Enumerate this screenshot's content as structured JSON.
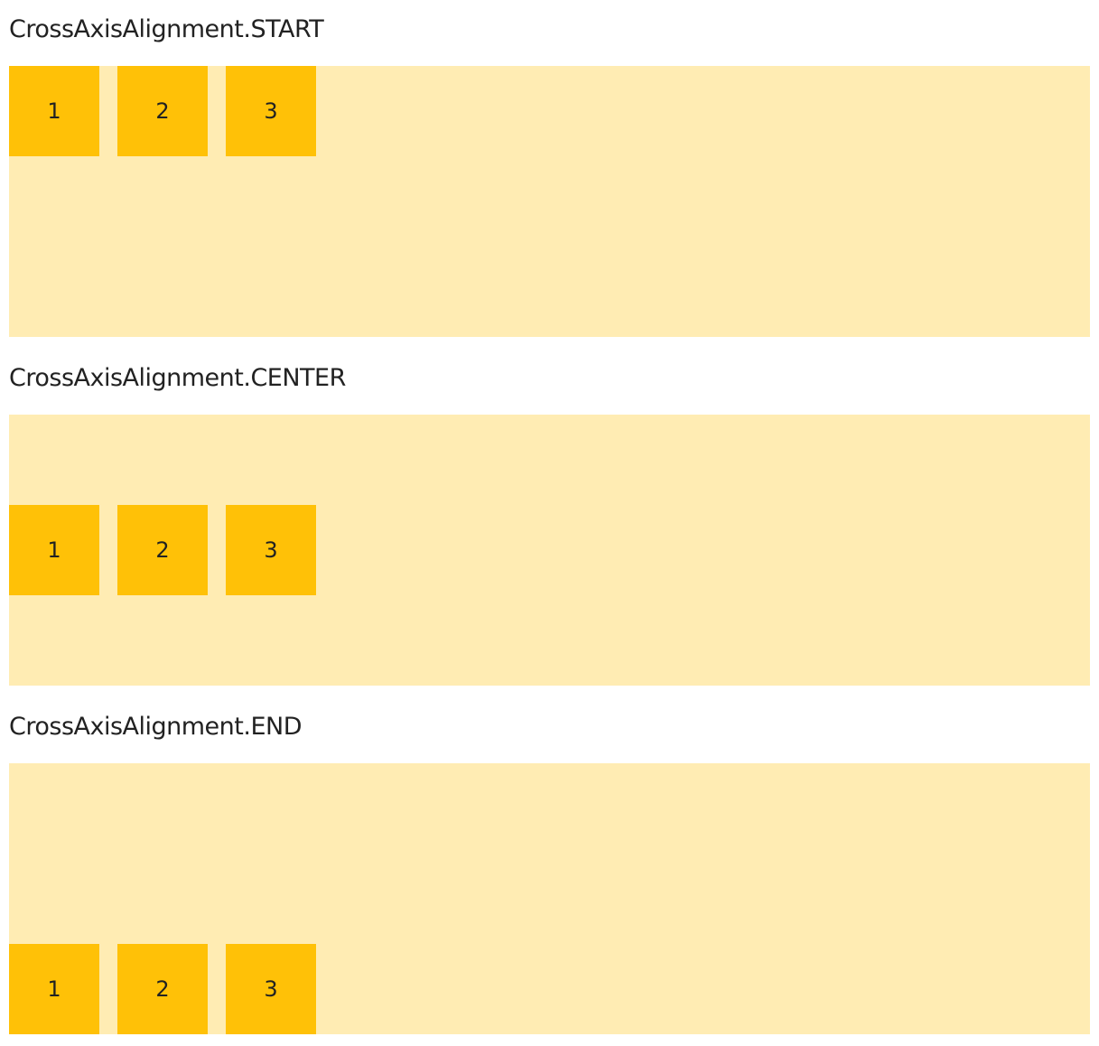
{
  "colors": {
    "container": "#FFECB3",
    "box": "#FFC107"
  },
  "sections": [
    {
      "title": "CrossAxisAlignment.START",
      "alignment": "start",
      "items": [
        "1",
        "2",
        "3"
      ]
    },
    {
      "title": "CrossAxisAlignment.CENTER",
      "alignment": "center",
      "items": [
        "1",
        "2",
        "3"
      ]
    },
    {
      "title": "CrossAxisAlignment.END",
      "alignment": "end",
      "items": [
        "1",
        "2",
        "3"
      ]
    }
  ]
}
